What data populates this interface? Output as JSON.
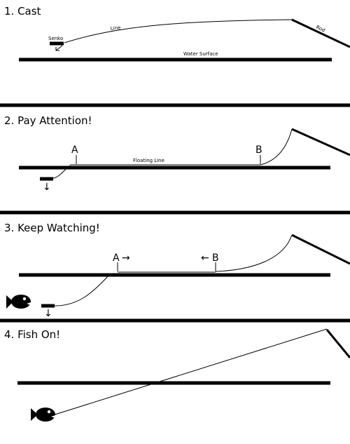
{
  "panels": [
    {
      "title": "1. Cast",
      "labels": {
        "senko": "Senko",
        "line": "Line",
        "rod": "Rod",
        "water": "Water Surface"
      }
    },
    {
      "title": "2. Pay Attention!",
      "labels": {
        "a": "A",
        "b": "B",
        "floating": "Floating Line"
      }
    },
    {
      "title": "3. Keep Watching!",
      "labels": {
        "a": "A",
        "b": "B"
      }
    },
    {
      "title": "4. Fish On!"
    }
  ],
  "icons": {
    "arrow_right": "→",
    "arrow_left": "←",
    "arrow_down": "↓"
  }
}
